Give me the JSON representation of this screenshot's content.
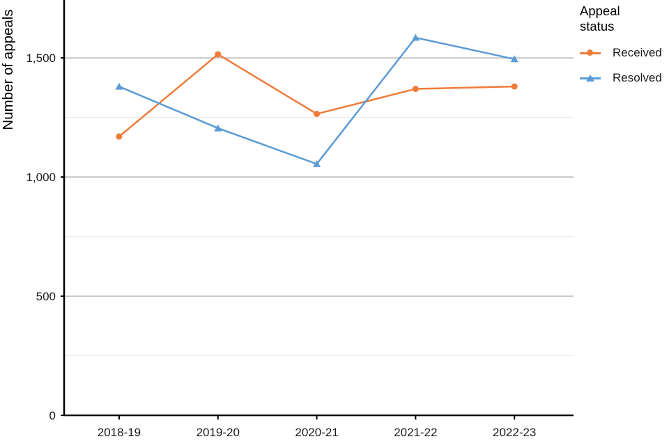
{
  "chart_data": {
    "type": "line",
    "title": "",
    "ylabel": "Number of appeals",
    "xlabel": "",
    "categories": [
      "2018-19",
      "2019-20",
      "2020-21",
      "2021-22",
      "2022-23"
    ],
    "series": [
      {
        "name": "Received",
        "marker": "circle",
        "color": "#EF7B39",
        "values": [
          1170,
          1515,
          1265,
          1370,
          1380
        ]
      },
      {
        "name": "Resolved",
        "marker": "triangle",
        "color": "#5B9BD5",
        "values": [
          1380,
          1205,
          1055,
          1585,
          1495
        ]
      }
    ],
    "legend_title": "Appeal status",
    "legend_position": "right",
    "ylim": [
      0,
      1743
    ],
    "yticks": [
      0,
      500,
      1000,
      1500
    ],
    "ytick_labels": [
      "0",
      "500",
      "1,000",
      "1,500"
    ],
    "minor_gridlines": [
      250,
      750,
      1250,
      1750
    ],
    "grid": "horizontal",
    "colors": {
      "axis": "#000000",
      "tick_label": "#1a1a1a",
      "major_grid": "#c9c9c9",
      "minor_grid": "#e8e8e8",
      "background": "#ffffff"
    }
  }
}
